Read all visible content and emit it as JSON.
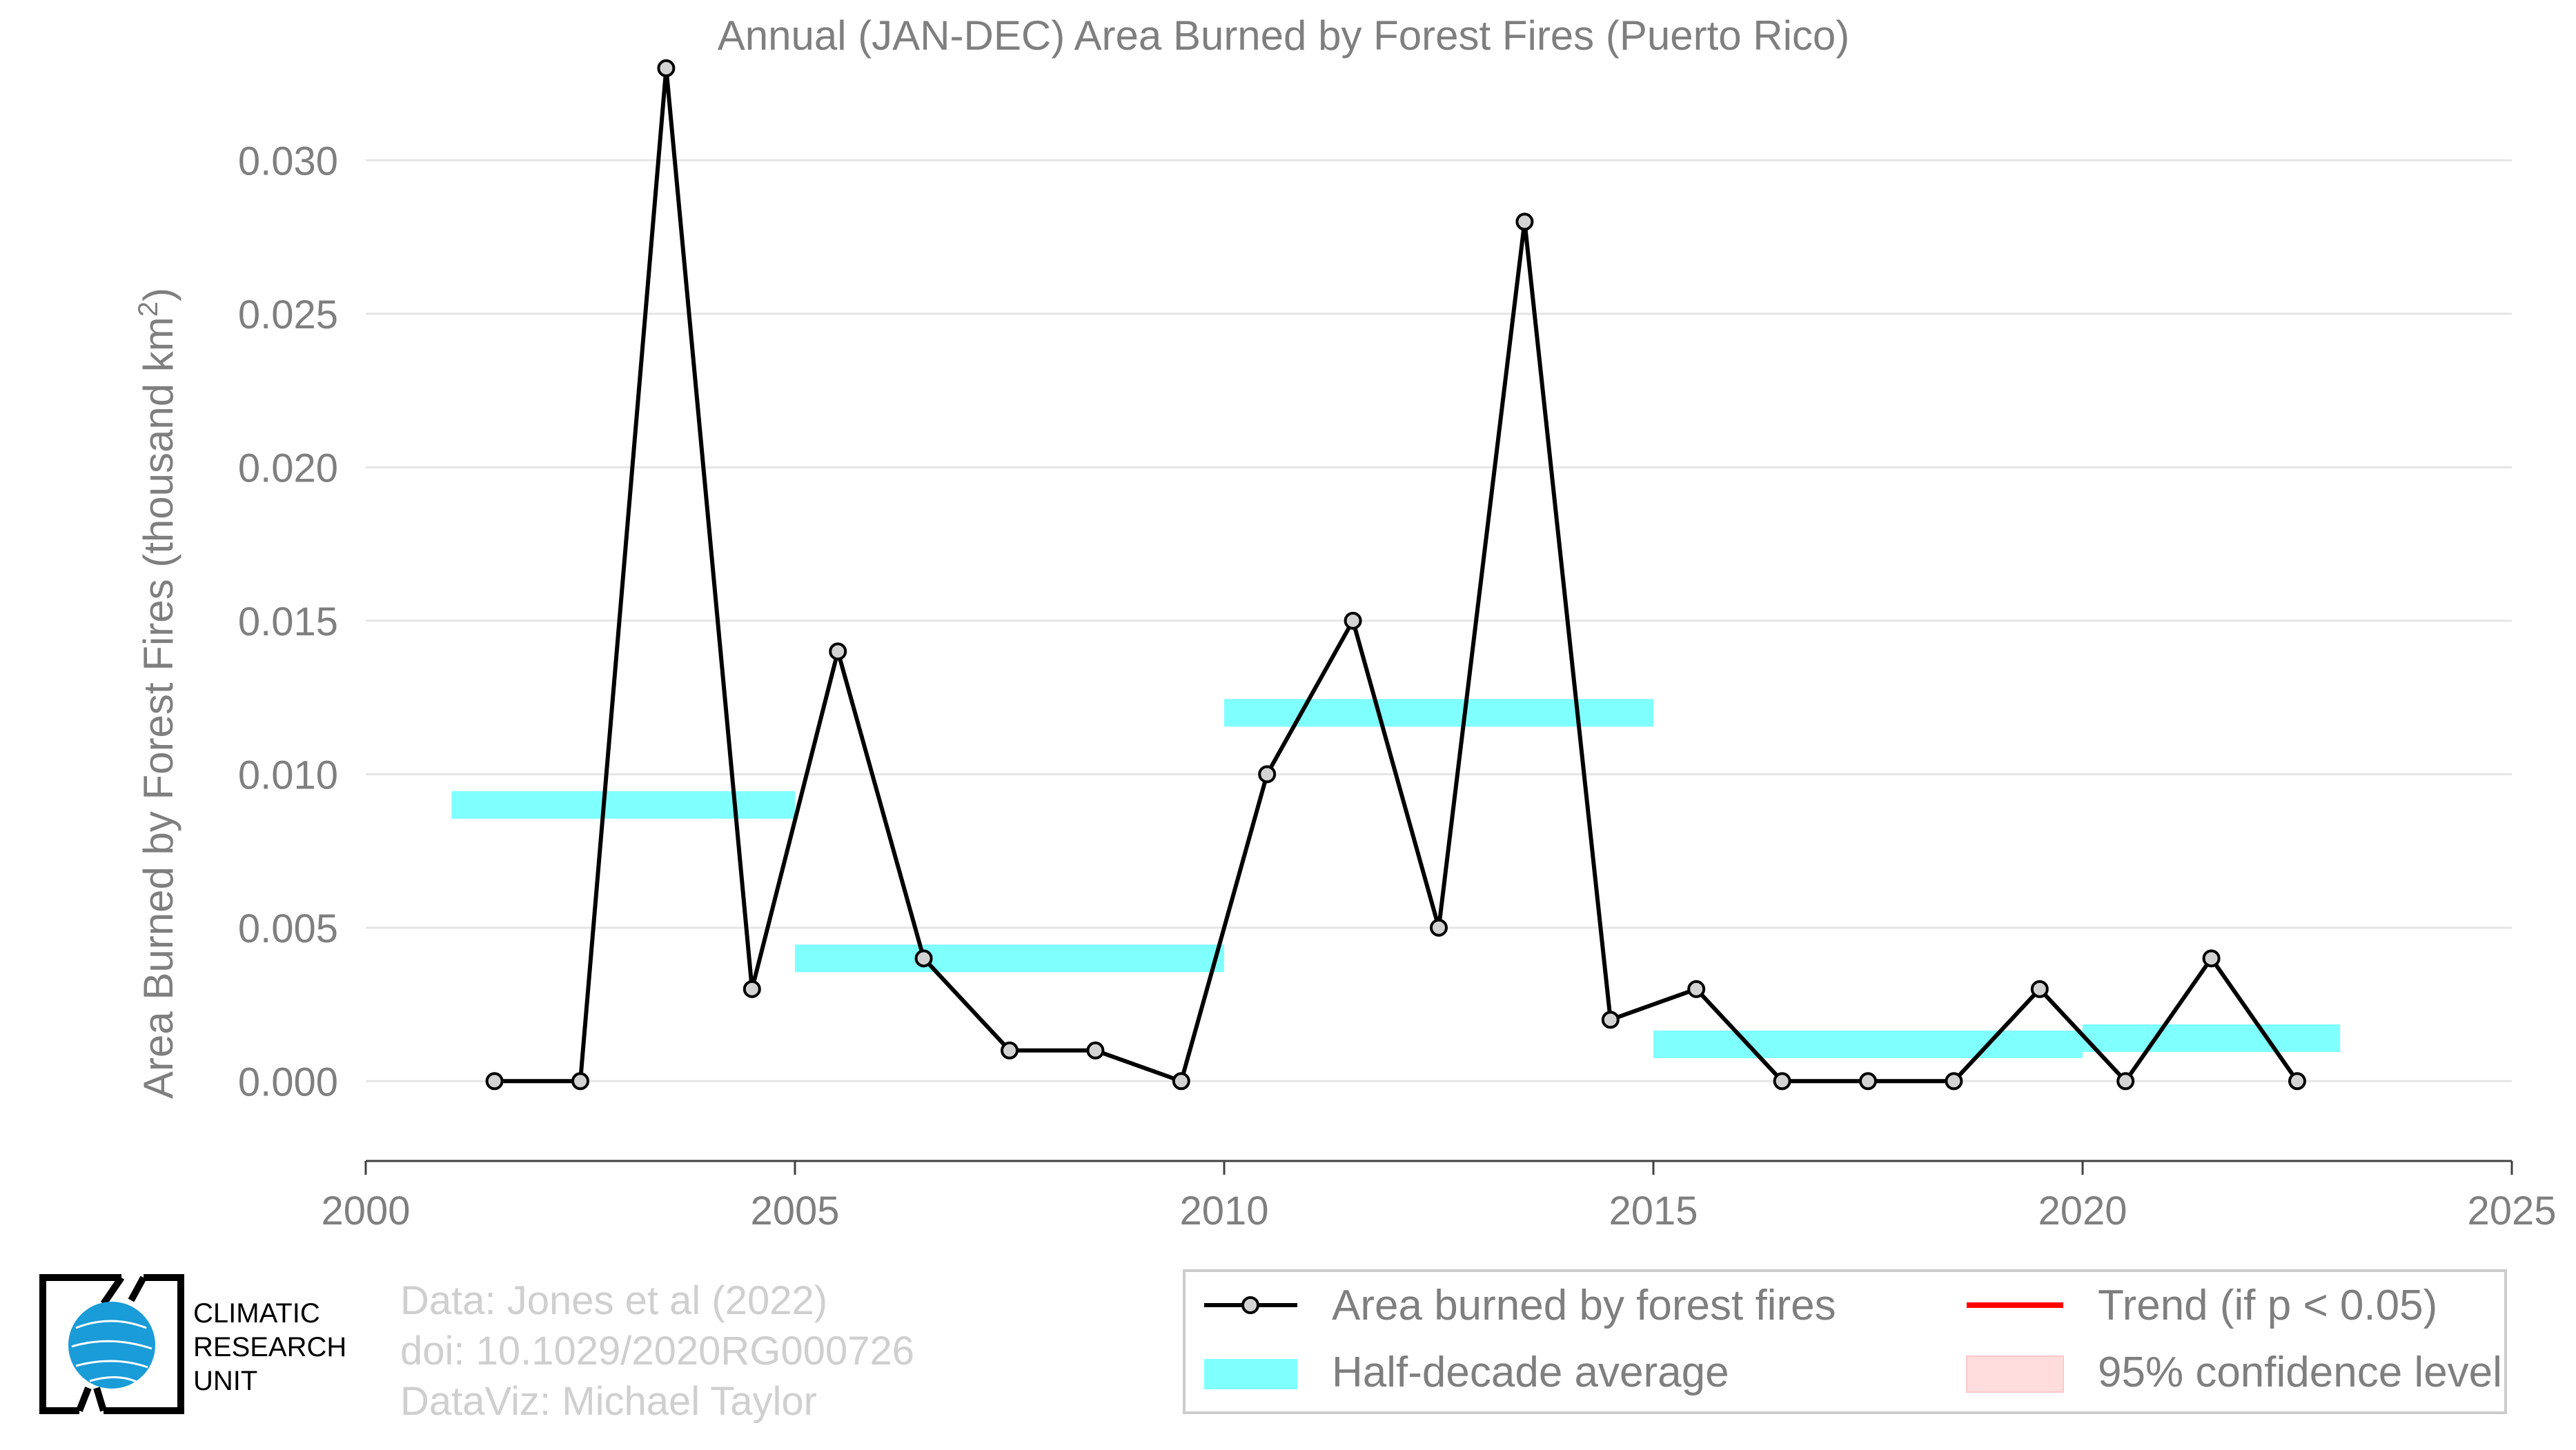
{
  "chart_data": {
    "type": "line",
    "title": "Annual (JAN-DEC) Area Burned by Forest Fires (Puerto Rico)",
    "xlabel": "",
    "ylabel": "Area Burned by Forest Fires (thousand km",
    "ylabel_superscript": "2",
    "ylabel_close": ")",
    "xlim": [
      2000,
      2025
    ],
    "ylim": [
      -0.0026,
      0.0332
    ],
    "x_ticks": [
      2000,
      2005,
      2010,
      2015,
      2020,
      2025
    ],
    "x_tick_labels": [
      "2000",
      "2005",
      "2010",
      "2015",
      "2020",
      "2025"
    ],
    "y_ticks": [
      0,
      0.005,
      0.01,
      0.015,
      0.02,
      0.025,
      0.03
    ],
    "y_tick_labels": [
      "0.000",
      "0.005",
      "0.010",
      "0.015",
      "0.020",
      "0.025",
      "0.030"
    ],
    "grid": "horizontal",
    "series": [
      {
        "name": "Area burned by forest fires",
        "color": "#000000",
        "marker_fill": "#d3d3d3",
        "x": [
          2001.5,
          2002.5,
          2003.5,
          2004.5,
          2005.5,
          2006.5,
          2007.5,
          2008.5,
          2009.5,
          2010.5,
          2011.5,
          2012.5,
          2013.5,
          2014.5,
          2015.5,
          2016.5,
          2017.5,
          2018.5,
          2019.5,
          2020.5,
          2021.5,
          2022.5
        ],
        "y": [
          0.0,
          0.0,
          0.033,
          0.003,
          0.014,
          0.004,
          0.001,
          0.001,
          0.0,
          0.01,
          0.015,
          0.005,
          0.028,
          0.002,
          0.003,
          0.0,
          0.0,
          0.0,
          0.003,
          0.0,
          0.004,
          0.0
        ]
      }
    ],
    "half_decade_average": {
      "name": "Half-decade average",
      "color": "#80ffff",
      "segments": [
        {
          "x_start": 2001,
          "x_end": 2005,
          "value": 0.009
        },
        {
          "x_start": 2005,
          "x_end": 2010,
          "value": 0.004
        },
        {
          "x_start": 2010,
          "x_end": 2015,
          "value": 0.012
        },
        {
          "x_start": 2015,
          "x_end": 2020,
          "value": 0.0012
        },
        {
          "x_start": 2020,
          "x_end": 2023,
          "value": 0.0014
        }
      ]
    },
    "legend": {
      "placement": "bottom-right",
      "entries": [
        {
          "label": "Area burned by forest fires",
          "kind": "line-marker",
          "color": "#000000"
        },
        {
          "label": "Trend (if p < 0.05)",
          "kind": "line",
          "color": "#ff0000"
        },
        {
          "label": "Half-decade average",
          "kind": "band",
          "color": "#80ffff"
        },
        {
          "label": "95% confidence level",
          "kind": "band",
          "color": "#ffdddd"
        }
      ]
    },
    "colors": {
      "text": "#7f7f7f",
      "credits": "#cfcfcf",
      "grid": "#e5e5e5",
      "axis": "#404040",
      "legend_border": "#cccccc"
    }
  },
  "credits": {
    "line1": "Data: Jones et al (2022)",
    "line2": "doi: 10.1029/2020RG000726",
    "line3": "DataViz: Michael Taylor"
  },
  "logo": {
    "line1": "CLIMATIC",
    "line2": "RESEARCH",
    "line3": "UNIT",
    "globe_color": "#1a9cd8"
  }
}
